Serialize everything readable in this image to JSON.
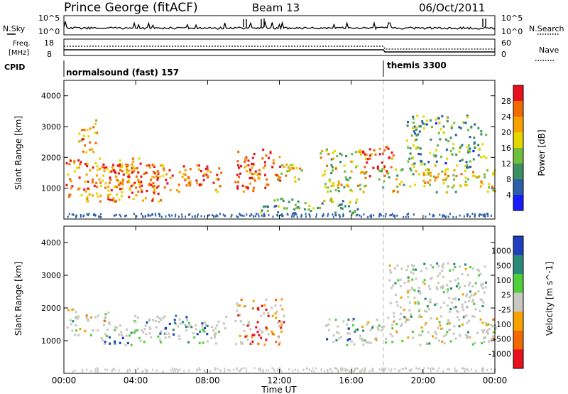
{
  "header": {
    "station": "Prince George (fitACF)",
    "beam": "Beam 13",
    "date": "06/Oct/2011"
  },
  "panels": {
    "nsky_label": "N.Sky",
    "nsky_ticks": [
      "10^5",
      "10^0"
    ],
    "nsearch_label": "N.Search",
    "nsearch_ticks": [
      "10^5",
      "10^0"
    ],
    "freq_label_1": "Freq.",
    "freq_label_2": "[MHz]",
    "freq_ticks": [
      "18",
      "8"
    ],
    "nave_label": "Nave",
    "nave_ticks": [
      "60",
      "0"
    ],
    "cpid_label": "CPID",
    "cpid_segments": [
      {
        "name": "normalsound (fast) 157",
        "start_hour": 0
      },
      {
        "name": "themis 3300",
        "start_hour": 18.0
      }
    ]
  },
  "chart_data": [
    {
      "type": "heatmap",
      "title": "",
      "ylabel": "Slant Range [km]",
      "ylim": [
        0,
        4500
      ],
      "yticks": [
        "4000",
        "3000",
        "2000",
        "1000"
      ],
      "xlabel": "Time UT",
      "xticks": [
        "00:00",
        "04:00",
        "08:00",
        "12:00",
        "16:00",
        "20:00",
        "00:00"
      ],
      "xlim_hours": [
        0,
        24
      ],
      "colorbar": {
        "label": "Power [dB]",
        "ticks": [
          "28",
          "24",
          "20",
          "16",
          "12",
          "8",
          "4"
        ],
        "colors": [
          "#e8101a",
          "#f06a00",
          "#f7a200",
          "#e6d600",
          "#6fbf3c",
          "#3a8f63",
          "#2d5fa8",
          "#1a1aff"
        ]
      },
      "scatter_regions": [
        {
          "t0": 0.0,
          "t1": 5.5,
          "r0": 600,
          "r1": 2000,
          "level": 0.75
        },
        {
          "t0": 0.8,
          "t1": 1.8,
          "r0": 2200,
          "r1": 3400,
          "level": 0.65
        },
        {
          "t0": 2.5,
          "t1": 8.8,
          "r0": 900,
          "r1": 1800,
          "level": 0.8
        },
        {
          "t0": 9.5,
          "t1": 12.0,
          "r0": 900,
          "r1": 2300,
          "level": 0.85
        },
        {
          "t0": 11.8,
          "t1": 13.2,
          "r0": 1200,
          "r1": 1900,
          "level": 0.6
        },
        {
          "t0": 14.2,
          "t1": 16.8,
          "r0": 900,
          "r1": 2300,
          "level": 0.55
        },
        {
          "t0": 16.5,
          "t1": 18.3,
          "r0": 1400,
          "r1": 2400,
          "level": 0.9
        },
        {
          "t0": 17.5,
          "t1": 24.0,
          "r0": 900,
          "r1": 1700,
          "level": 0.55
        },
        {
          "t0": 19.0,
          "t1": 23.5,
          "r0": 1700,
          "r1": 3400,
          "level": 0.35
        },
        {
          "t0": 10.8,
          "t1": 16.5,
          "r0": 200,
          "r1": 700,
          "level": 0.4
        }
      ]
    },
    {
      "type": "heatmap",
      "title": "",
      "ylabel": "Slant Range [km]",
      "ylim": [
        0,
        4500
      ],
      "yticks": [
        "4000",
        "3000",
        "2000",
        "1000"
      ],
      "xlabel": "Time UT",
      "xticks": [
        "00:00",
        "04:00",
        "08:00",
        "12:00",
        "16:00",
        "20:00",
        "00:00"
      ],
      "xlim_hours": [
        0,
        24
      ],
      "colorbar": {
        "label": "Velocity [m s^-1]",
        "ticks": [
          "1000",
          "500",
          "100",
          "25",
          "-25",
          "-100",
          "-500",
          "-1000"
        ],
        "colors": [
          "#1f3fbf",
          "#2a8a78",
          "#4fcf3a",
          "#c8c8c0",
          "#f7a200",
          "#f06a00",
          "#e8101a"
        ]
      },
      "scatter_regions": [
        {
          "t0": 0.0,
          "t1": 2.5,
          "r0": 1200,
          "r1": 2000,
          "level": 0.5
        },
        {
          "t0": 3.8,
          "t1": 9.0,
          "r0": 1300,
          "r1": 1800,
          "level": 0.3
        },
        {
          "t0": 2.0,
          "t1": 8.5,
          "r0": 900,
          "r1": 1500,
          "level": 0.15
        },
        {
          "t0": 9.5,
          "t1": 12.2,
          "r0": 900,
          "r1": 2300,
          "level": 0.8
        },
        {
          "t0": 14.5,
          "t1": 16.8,
          "r0": 900,
          "r1": 1700,
          "level": 0.2
        },
        {
          "t0": 16.5,
          "t1": 24.0,
          "r0": 900,
          "r1": 1700,
          "level": 0.5
        },
        {
          "t0": 18.0,
          "t1": 23.5,
          "r0": 1700,
          "r1": 3400,
          "level": 0.4
        }
      ]
    }
  ]
}
